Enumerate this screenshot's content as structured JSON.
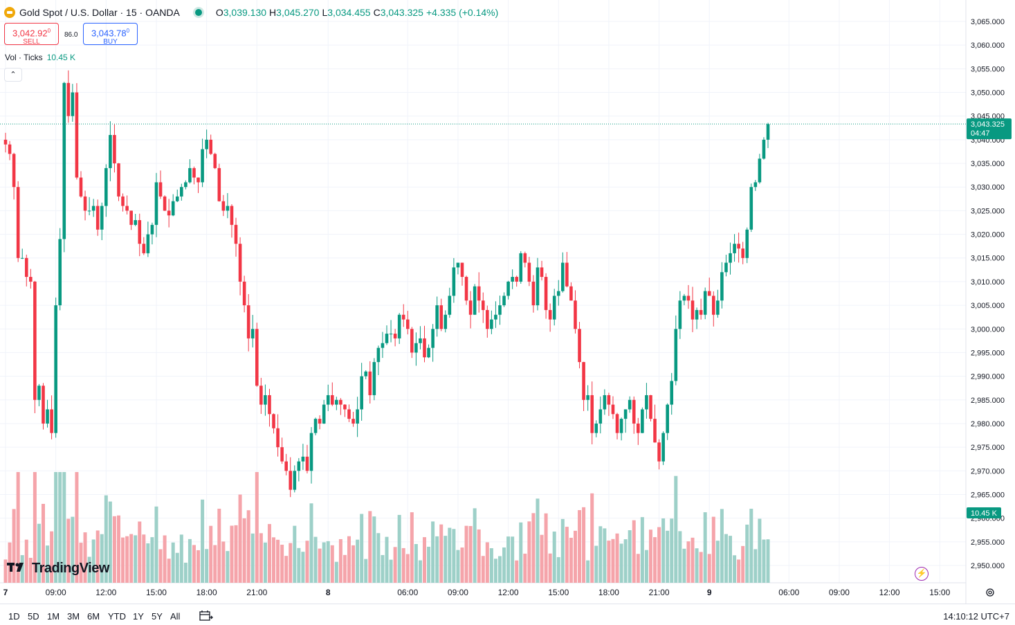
{
  "header": {
    "symbol_title": "Gold Spot / U.S. Dollar · 15 · OANDA",
    "ohlc": [
      {
        "label": "O",
        "value": "3,039.130"
      },
      {
        "label": "H",
        "value": "3,045.270"
      },
      {
        "label": "L",
        "value": "3,034.455"
      },
      {
        "label": "C",
        "value": "3,043.325"
      }
    ],
    "change": "+4.335 (+0.14%)"
  },
  "trade": {
    "sell_price": "3,042.92",
    "sell_sup": "0",
    "sell_label": "SELL",
    "spread": "86.0",
    "buy_price": "3,043.78",
    "buy_sup": "0",
    "buy_label": "BUY"
  },
  "volume": {
    "title": "Vol · Ticks",
    "value": "10.45 K",
    "badge": "10.45 K"
  },
  "price_badge": {
    "price": "3,043.325",
    "countdown": "04:47"
  },
  "watermark": "TradingView",
  "bottom": {
    "ranges": [
      "1D",
      "5D",
      "1M",
      "3M",
      "6M",
      "YTD",
      "1Y",
      "5Y",
      "All"
    ],
    "clock": "14:10:12 UTC+7"
  },
  "colors": {
    "up": "#089981",
    "down": "#f23645",
    "vol_up": "#9dd0c8",
    "vol_down": "#f5a4aa",
    "badge": "#089981"
  },
  "chart_data": {
    "type": "candlestick",
    "interval": "15",
    "y_ticks": [
      "3,065.000",
      "3,060.000",
      "3,055.000",
      "3,050.000",
      "3,045.000",
      "3,040.000",
      "3,035.000",
      "3,030.000",
      "3,025.000",
      "3,020.000",
      "3,015.000",
      "3,010.000",
      "3,005.000",
      "3,000.000",
      "2,995.000",
      "2,990.000",
      "2,985.000",
      "2,980.000",
      "2,975.000",
      "2,970.000",
      "2,965.000",
      "2,960.000",
      "2,955.000",
      "2,950.000"
    ],
    "y_tick_values": [
      3065,
      3060,
      3055,
      3050,
      3045,
      3040,
      3035,
      3030,
      3025,
      3020,
      3015,
      3010,
      3005,
      3000,
      2995,
      2990,
      2985,
      2980,
      2975,
      2970,
      2965,
      2960,
      2955,
      2950
    ],
    "x_ticks": [
      "7",
      "09:00",
      "12:00",
      "15:00",
      "18:00",
      "21:00",
      "8",
      "06:00",
      "09:00",
      "12:00",
      "15:00",
      "18:00",
      "21:00",
      "9",
      "06:00",
      "09:00",
      "12:00",
      "15:00"
    ],
    "x_tick_bars": [
      0,
      12,
      24,
      36,
      48,
      60,
      77,
      96,
      108,
      120,
      132,
      144,
      156,
      168,
      187,
      199,
      211,
      223
    ],
    "last_price": 3043.325,
    "closes": [
      3039,
      3037,
      3030,
      3015,
      3015,
      3011,
      3010,
      2985,
      2988,
      2980,
      2983,
      2978,
      3005,
      3019,
      3052,
      3045,
      3050,
      3032,
      3028,
      3025,
      3025,
      3026,
      3021,
      3026,
      3034,
      3041,
      3035,
      3028,
      3026,
      3025,
      3022,
      3023,
      3018,
      3016,
      3020,
      3022,
      3031,
      3028,
      3025,
      3024,
      3027,
      3028,
      3030,
      3031,
      3034,
      3032,
      3031,
      3038,
      3040,
      3037,
      3034,
      3027,
      3025,
      3026,
      3022,
      3018,
      3010,
      3005,
      2998,
      3000,
      2988,
      2984,
      2986,
      2982,
      2979,
      2975,
      2972,
      2970,
      2966,
      2970,
      2972,
      2973,
      2970,
      2978,
      2981,
      2980,
      2984,
      2986,
      2984,
      2985,
      2984,
      2983,
      2981,
      2980,
      2983,
      2990,
      2991,
      2986,
      2993,
      2996,
      2997,
      2999,
      2999,
      2998,
      3003,
      3002,
      3000,
      2995,
      2997,
      2998,
      2994,
      2996,
      3000,
      3005,
      3000,
      3003,
      3007,
      3013,
      3014,
      3011,
      3006,
      3003,
      3009,
      3006,
      3004,
      3000,
      3002,
      3003,
      3005,
      3007,
      3010,
      3011,
      3010,
      3016,
      3014,
      3010,
      3005,
      3013,
      3011,
      3004,
      3002,
      3007,
      3008,
      3014,
      3009,
      3006,
      3000,
      2993,
      2985,
      2986,
      2978,
      2980,
      2983,
      2986,
      2984,
      2982,
      2978,
      2981,
      2983,
      2985,
      2980,
      2978,
      2983,
      2986,
      2981,
      2976,
      2972,
      2978,
      2984,
      2989,
      3000,
      3006,
      3007,
      3006,
      3002,
      3004,
      3003,
      3008,
      3007,
      3003,
      3006,
      3012,
      3014,
      3016,
      3018,
      3017,
      3015,
      3021,
      3030,
      3031,
      3036,
      3040,
      3043.3
    ]
  }
}
